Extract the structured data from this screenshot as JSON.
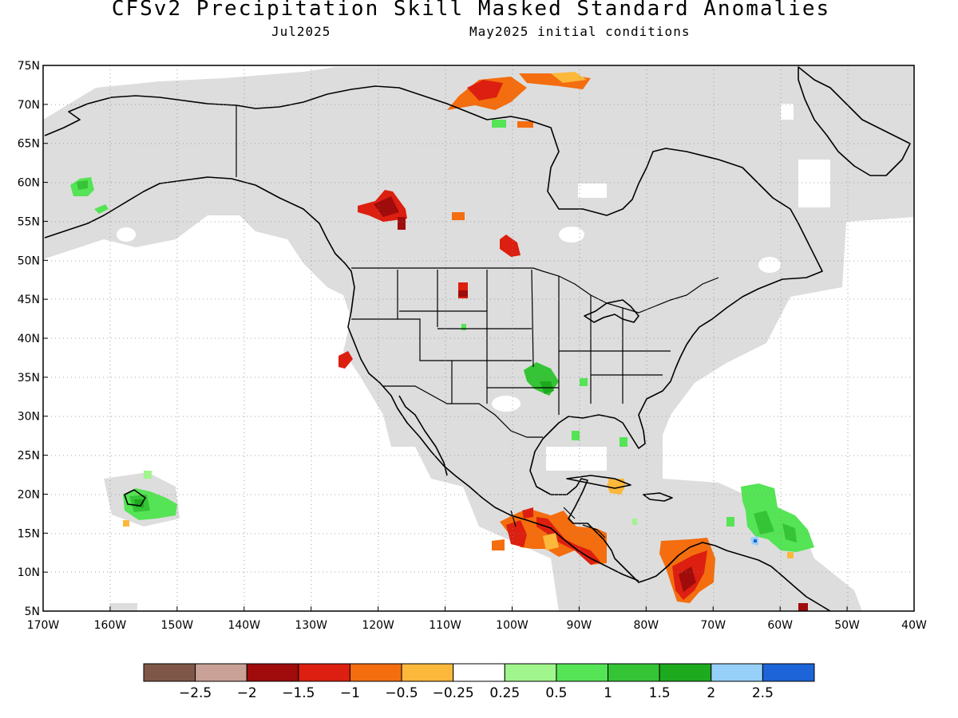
{
  "header": {
    "title": "CFSv2 Precipitation Skill Masked Standard Anomalies",
    "valid_month": "Jul2025",
    "init_conditions": "May2025 initial conditions"
  },
  "map": {
    "region": "North America",
    "projection": "latitude-longitude",
    "lon_range": [
      -170,
      -40
    ],
    "lat_range": [
      5,
      75
    ],
    "grid": "dotted",
    "mask_color": "#dddddd",
    "coastline_color": "#000000"
  },
  "axes": {
    "lat_labels": [
      "75N",
      "70N",
      "65N",
      "60N",
      "55N",
      "50N",
      "45N",
      "40N",
      "35N",
      "30N",
      "25N",
      "20N",
      "15N",
      "10N",
      "5N"
    ],
    "lon_labels": [
      "170W",
      "160W",
      "150W",
      "140W",
      "130W",
      "120W",
      "110W",
      "100W",
      "90W",
      "80W",
      "70W",
      "60W",
      "50W",
      "40W"
    ]
  },
  "legend": {
    "colors": [
      "#7f5749",
      "#c9a196",
      "#a00b0b",
      "#dc1f10",
      "#f46d0e",
      "#fbb83b",
      "#ffffff",
      "#a0f58c",
      "#55e455",
      "#35c435",
      "#1eaa1e",
      "#96cff8",
      "#1c64d8"
    ],
    "labels": [
      "−2.5",
      "−2",
      "−1.5",
      "−1",
      "−0.5",
      "−0.25",
      "0.25",
      "0.5",
      "1",
      "1.5",
      "2",
      "2.5"
    ]
  },
  "anomalies": [
    {
      "name": "Arctic Archipelago",
      "lon": -117,
      "lat": 71.5,
      "class": "below"
    },
    {
      "name": "Baffin Bay",
      "lon": -93,
      "lat": 73.5,
      "class": "below"
    },
    {
      "name": "Western Canada",
      "lon": -121,
      "lat": 56.5,
      "class": "well-below"
    },
    {
      "name": "Hudson Bay south",
      "lon": -99,
      "lat": 51.5,
      "class": "well-below"
    },
    {
      "name": "Wyoming",
      "lon": -108,
      "lat": 46,
      "class": "well-below"
    },
    {
      "name": "Off California",
      "lon": -124.5,
      "lat": 36.5,
      "class": "well-below"
    },
    {
      "name": "Oklahoma",
      "lon": -96,
      "lat": 35,
      "class": "above"
    },
    {
      "name": "Alaska west",
      "lon": -164,
      "lat": 59.5,
      "class": "above"
    },
    {
      "name": "Hawaii",
      "lon": -155,
      "lat": 19.5,
      "class": "above"
    },
    {
      "name": "Lesser Antilles",
      "lon": -62,
      "lat": 15.5,
      "class": "above"
    },
    {
      "name": "Southern Mexico",
      "lon": -95,
      "lat": 15,
      "class": "below"
    },
    {
      "name": "Central America Pacific",
      "lon": -89,
      "lat": 12,
      "class": "below"
    },
    {
      "name": "Colombia",
      "lon": -74,
      "lat": 10,
      "class": "below"
    }
  ]
}
